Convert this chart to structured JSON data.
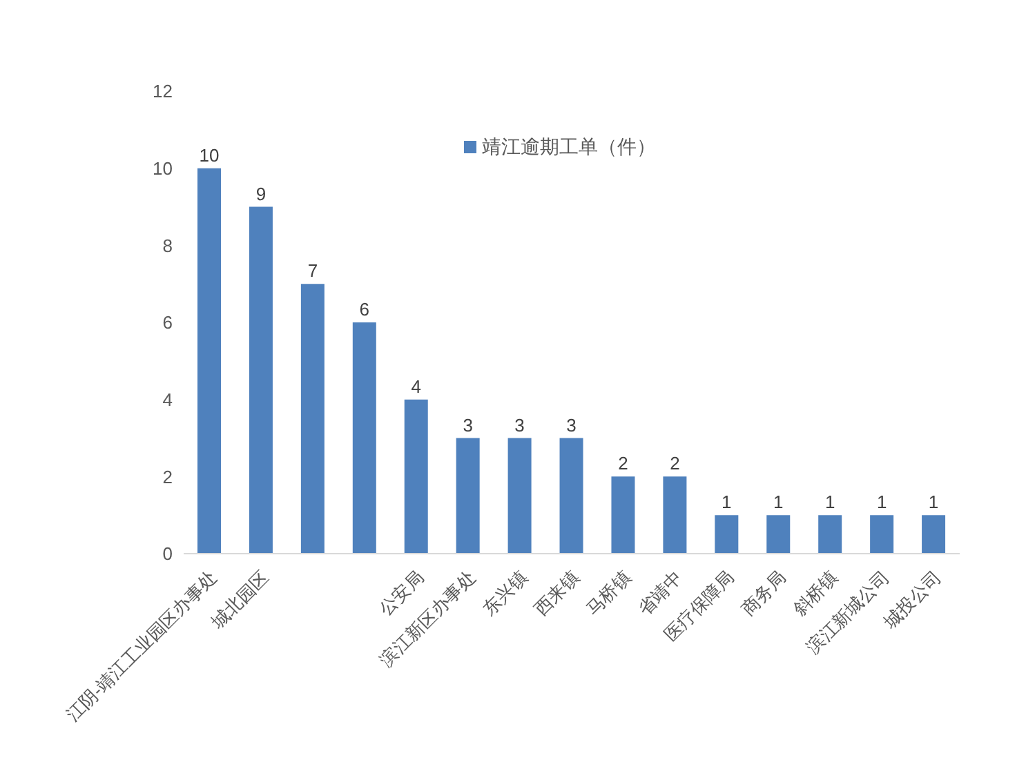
{
  "chart_data": {
    "type": "bar",
    "categories": [
      "江阴-靖江工业园区办事处",
      "城北园区",
      null,
      null,
      "公安局",
      "滨江新区办事处",
      "东兴镇",
      "西来镇",
      "马桥镇",
      "省靖中",
      "医疗保障局",
      "商务局",
      "斜桥镇",
      "滨江新城公司",
      "城投公司"
    ],
    "series": [
      {
        "name": "靖江逾期工单（件）",
        "color": "#4f81bd",
        "values": [
          10,
          9,
          7,
          6,
          4,
          3,
          3,
          3,
          2,
          2,
          1,
          1,
          1,
          1,
          1
        ]
      }
    ],
    "ylim": [
      0,
      12
    ],
    "yticks": [
      0,
      2,
      4,
      6,
      8,
      10,
      12
    ],
    "grid": false,
    "legend": "top right",
    "data_labels": true
  }
}
